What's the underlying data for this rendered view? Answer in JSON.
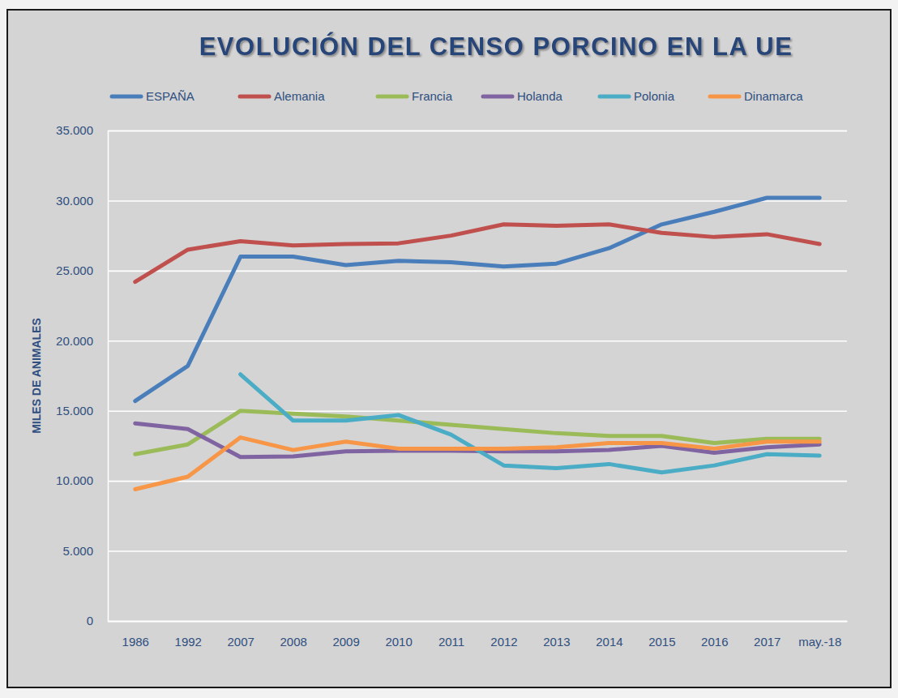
{
  "chart_data": {
    "type": "line",
    "title": "EVOLUCIÓN DEL CENSO PORCINO EN LA UE",
    "y_label": "MILES DE ANIMALES",
    "categories": [
      "1986",
      "1992",
      "2007",
      "2008",
      "2009",
      "2010",
      "2011",
      "2012",
      "2013",
      "2014",
      "2015",
      "2016",
      "2017",
      "may.-18"
    ],
    "series": [
      {
        "name": "ESPAÑA",
        "color": "#4a7ebb",
        "values": [
          15700,
          18200,
          26000,
          26000,
          25400,
          25700,
          25600,
          25300,
          25500,
          26600,
          28300,
          29200,
          30200,
          30200
        ]
      },
      {
        "name": "Alemania",
        "color": "#c0504d",
        "values": [
          24200,
          26500,
          27100,
          26800,
          26900,
          26950,
          27500,
          28300,
          28200,
          28300,
          27700,
          27400,
          27600,
          26900
        ]
      },
      {
        "name": "Francia",
        "color": "#9bbb59",
        "values": [
          11900,
          12600,
          15000,
          14800,
          14600,
          14300,
          14000,
          13700,
          13400,
          13200,
          13200,
          12700,
          13000,
          13000
        ]
      },
      {
        "name": "Holanda",
        "color": "#8064a2",
        "values": [
          14100,
          13700,
          11700,
          11750,
          12100,
          12150,
          12150,
          12100,
          12100,
          12200,
          12500,
          12000,
          12400,
          12600
        ]
      },
      {
        "name": "Polonia",
        "color": "#4bacc6",
        "values": [
          null,
          null,
          17600,
          14300,
          14300,
          14700,
          13300,
          11100,
          10900,
          11200,
          10600,
          11100,
          11900,
          11800
        ]
      },
      {
        "name": "Dinamarca",
        "color": "#f79646",
        "values": [
          9400,
          10300,
          13100,
          12200,
          12800,
          12300,
          12300,
          12300,
          12400,
          12700,
          12700,
          12300,
          12800,
          12800
        ]
      }
    ],
    "ylim": [
      0,
      35000
    ],
    "yticks": [
      0,
      {
        "value": 5000,
        "label": "5.000"
      },
      {
        "value": 10000,
        "label": "10.000"
      },
      {
        "value": 15000,
        "label": "15.000"
      },
      {
        "value": 20000,
        "label": "20.000"
      },
      {
        "value": 25000,
        "label": "25.000"
      },
      {
        "value": 30000,
        "label": "30.000"
      },
      {
        "value": 35000,
        "label": "35.000"
      }
    ],
    "grid": true,
    "legend": "top"
  }
}
